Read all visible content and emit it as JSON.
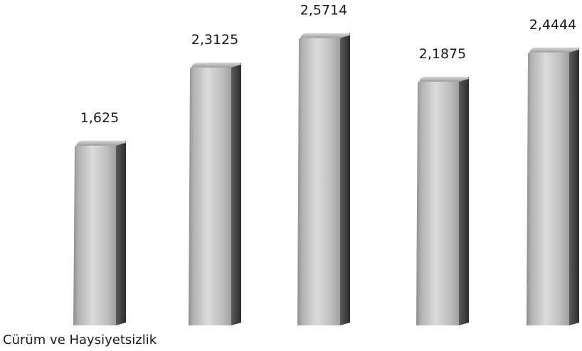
{
  "chart_data": {
    "type": "bar",
    "style": "3d-cylinder-gray",
    "categories": [
      "Cürüm ve Haysiyetsizlik",
      "",
      "",
      "",
      ""
    ],
    "values": [
      1.625,
      2.3125,
      2.5714,
      2.1875,
      2.4444
    ],
    "value_labels": [
      "1,625",
      "2,3125",
      "2,5714",
      "2,1875",
      "2,4444"
    ],
    "title": "",
    "xlabel": "",
    "ylabel": "",
    "ylim": [
      0,
      2.6
    ],
    "grid": false,
    "legend": "none",
    "colors": {
      "bar_light": "#d9d9d9",
      "bar_mid": "#a8a8a8",
      "bar_dark": "#3a3a3a",
      "bar_top": "#c4c4c4",
      "text": "#1a1a1a"
    }
  }
}
